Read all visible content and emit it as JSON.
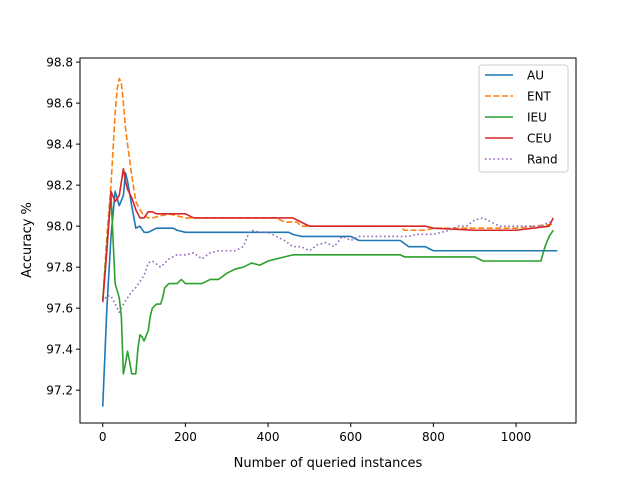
{
  "chart_data": {
    "type": "line",
    "title": "",
    "xlabel": "Number of queried instances",
    "ylabel": "Accuracy %",
    "xlim": [
      -55,
      1145
    ],
    "ylim": [
      97.04,
      98.82
    ],
    "xticks": [
      0,
      200,
      400,
      600,
      800,
      1000
    ],
    "yticks": [
      97.2,
      97.4,
      97.6,
      97.8,
      98.0,
      98.2,
      98.4,
      98.6,
      98.8
    ],
    "xtick_labels": [
      "0",
      "200",
      "400",
      "600",
      "800",
      "1000"
    ],
    "ytick_labels": [
      "97.2",
      "97.4",
      "97.6",
      "97.8",
      "98.0",
      "98.2",
      "98.4",
      "98.6",
      "98.8"
    ],
    "grid": false,
    "legend_position": "top-right",
    "series": [
      {
        "name": "AU",
        "color": "#1f77b4",
        "style": "solid",
        "x": [
          0,
          10,
          20,
          30,
          40,
          50,
          55,
          60,
          70,
          80,
          90,
          100,
          110,
          120,
          130,
          140,
          150,
          160,
          170,
          180,
          200,
          300,
          400,
          450,
          460,
          480,
          500,
          600,
          620,
          720,
          740,
          780,
          800,
          900,
          1000,
          1100
        ],
        "y": [
          97.12,
          97.6,
          97.95,
          98.17,
          98.1,
          98.15,
          98.26,
          98.22,
          98.1,
          97.99,
          98.0,
          97.97,
          97.97,
          97.98,
          97.99,
          97.99,
          97.99,
          97.99,
          97.99,
          97.98,
          97.97,
          97.97,
          97.97,
          97.97,
          97.96,
          97.95,
          97.95,
          97.95,
          97.93,
          97.93,
          97.9,
          97.9,
          97.88,
          97.88,
          97.88,
          97.88
        ]
      },
      {
        "name": "ENT",
        "color": "#ff7f0e",
        "style": "dashed",
        "x": [
          0,
          10,
          20,
          30,
          35,
          40,
          45,
          50,
          55,
          60,
          70,
          80,
          90,
          100,
          110,
          120,
          140,
          160,
          180,
          200,
          300,
          420,
          440,
          470,
          480,
          500,
          600,
          700,
          720,
          730,
          760,
          780,
          800,
          900,
          1000,
          1090
        ],
        "y": [
          97.63,
          97.95,
          98.2,
          98.55,
          98.67,
          98.72,
          98.7,
          98.6,
          98.48,
          98.4,
          98.25,
          98.12,
          98.08,
          98.05,
          98.04,
          98.04,
          98.05,
          98.06,
          98.05,
          98.04,
          98.04,
          98.04,
          98.02,
          98.02,
          98.0,
          98.0,
          98.0,
          98.0,
          98.0,
          97.98,
          97.98,
          97.98,
          97.99,
          97.99,
          97.99,
          98.01
        ]
      },
      {
        "name": "IEU",
        "color": "#2ca02c",
        "style": "solid",
        "x": [
          0,
          10,
          20,
          30,
          40,
          45,
          50,
          55,
          60,
          65,
          70,
          75,
          80,
          85,
          90,
          95,
          100,
          110,
          115,
          120,
          130,
          140,
          145,
          150,
          160,
          170,
          180,
          190,
          200,
          220,
          240,
          260,
          280,
          300,
          320,
          340,
          360,
          380,
          400,
          420,
          440,
          460,
          480,
          500,
          600,
          700,
          720,
          730,
          800,
          900,
          920,
          1000,
          1060,
          1070,
          1080,
          1090
        ],
        "y": [
          97.64,
          97.9,
          98.15,
          97.72,
          97.65,
          97.56,
          97.28,
          97.33,
          97.39,
          97.34,
          97.28,
          97.28,
          97.28,
          97.4,
          97.47,
          97.46,
          97.44,
          97.49,
          97.56,
          97.6,
          97.62,
          97.62,
          97.65,
          97.7,
          97.72,
          97.72,
          97.72,
          97.74,
          97.72,
          97.72,
          97.72,
          97.74,
          97.74,
          97.77,
          97.79,
          97.8,
          97.82,
          97.81,
          97.83,
          97.84,
          97.85,
          97.86,
          97.86,
          97.86,
          97.86,
          97.86,
          97.86,
          97.85,
          97.85,
          97.85,
          97.83,
          97.83,
          97.83,
          97.9,
          97.95,
          97.98
        ]
      },
      {
        "name": "CEU",
        "color": "#d62728",
        "style": "solid",
        "x": [
          0,
          10,
          20,
          30,
          40,
          50,
          55,
          60,
          70,
          80,
          90,
          100,
          110,
          120,
          130,
          140,
          160,
          180,
          200,
          220,
          300,
          400,
          460,
          470,
          490,
          500,
          600,
          700,
          780,
          800,
          900,
          1000,
          1080,
          1090
        ],
        "y": [
          97.63,
          97.88,
          98.17,
          98.12,
          98.15,
          98.28,
          98.22,
          98.18,
          98.14,
          98.08,
          98.04,
          98.04,
          98.07,
          98.07,
          98.06,
          98.06,
          98.06,
          98.06,
          98.06,
          98.04,
          98.04,
          98.04,
          98.04,
          98.03,
          98.01,
          98.0,
          98.0,
          98.0,
          98.0,
          97.99,
          97.98,
          97.98,
          98.0,
          98.04
        ]
      },
      {
        "name": "Rand",
        "color": "#9467bd",
        "style": "dotted",
        "x": [
          0,
          10,
          20,
          30,
          40,
          45,
          50,
          60,
          70,
          80,
          90,
          100,
          110,
          120,
          140,
          160,
          180,
          200,
          220,
          240,
          260,
          280,
          300,
          320,
          340,
          350,
          360,
          380,
          400,
          420,
          440,
          460,
          480,
          500,
          520,
          540,
          560,
          580,
          600,
          620,
          640,
          660,
          680,
          700,
          720,
          740,
          760,
          780,
          800,
          840,
          860,
          880,
          900,
          920,
          940,
          960,
          980,
          1000,
          1040,
          1060,
          1080,
          1090
        ],
        "y": [
          97.63,
          97.66,
          97.66,
          97.62,
          97.58,
          97.6,
          97.62,
          97.65,
          97.68,
          97.7,
          97.73,
          97.76,
          97.82,
          97.83,
          97.8,
          97.84,
          97.86,
          97.86,
          97.87,
          97.84,
          97.87,
          97.88,
          97.88,
          97.88,
          97.9,
          97.95,
          97.98,
          97.97,
          97.97,
          97.95,
          97.93,
          97.9,
          97.9,
          97.88,
          97.91,
          97.92,
          97.9,
          97.95,
          97.93,
          97.95,
          97.95,
          97.95,
          97.95,
          97.95,
          97.95,
          97.95,
          97.96,
          97.96,
          97.96,
          97.98,
          98.0,
          98.0,
          98.03,
          98.04,
          98.02,
          98.0,
          98.0,
          98.0,
          98.0,
          98.0,
          98.02,
          98.02
        ]
      }
    ]
  }
}
